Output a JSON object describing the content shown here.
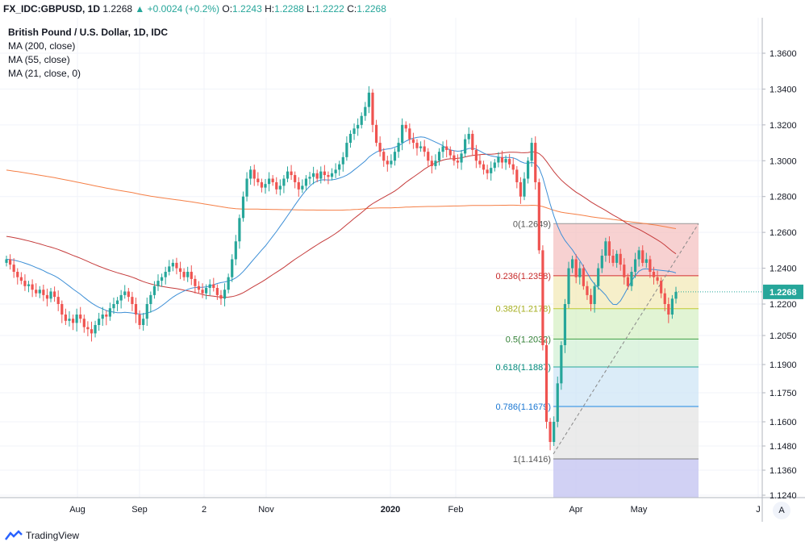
{
  "header": {
    "symbol": "FX_IDC:GBPUSD, 1D",
    "last": "1.2268",
    "change": "▲ +0.0024 (+0.2%)",
    "o_label": "O:",
    "o": "1.2243",
    "h_label": "H:",
    "h": "1.2288",
    "l_label": "L:",
    "l": "1.2222",
    "c_label": "C:",
    "c": "1.2268"
  },
  "legend": {
    "title": "British Pound / U.S. Dollar, 1D, IDC",
    "ma200": "MA (200, close)",
    "ma55": "MA (55, close)",
    "ma21": "MA (21, close, 0)"
  },
  "footer": {
    "brand": "TradingView"
  },
  "controls": {
    "auto": "A"
  },
  "colors": {
    "up": "#26a69a",
    "down": "#ef5350",
    "ma200": "#f57f46",
    "ma55": "#c53b3b",
    "ma21": "#3d8fd6",
    "last_price_bg": "#26a69a"
  },
  "chart_data": {
    "type": "candlestick",
    "y_scale": [
      1.222,
      1.23,
      1.24,
      1.26,
      1.28,
      1.3,
      1.32,
      1.34,
      1.36
    ],
    "y_ticks": [
      "1.3600",
      "1.3400",
      "1.3200",
      "1.3000",
      "1.2800",
      "1.2600",
      "1.2400",
      "1.2200",
      "1.2050",
      "1.1900",
      "1.1750",
      "1.1600",
      "1.1480",
      "1.1360",
      "1.1240"
    ],
    "x_ticks": [
      "Aug",
      "Sep",
      "2",
      "Nov",
      "2020",
      "Feb",
      "Apr",
      "May",
      "J"
    ],
    "last_price_label": "1.2268",
    "candles_close": [
      1.245,
      1.242,
      1.238,
      1.235,
      1.233,
      1.23,
      1.231,
      1.228,
      1.226,
      1.228,
      1.225,
      1.223,
      1.227,
      1.224,
      1.22,
      1.215,
      1.212,
      1.213,
      1.211,
      1.215,
      1.213,
      1.209,
      1.208,
      1.206,
      1.21,
      1.213,
      1.215,
      1.214,
      1.218,
      1.22,
      1.222,
      1.225,
      1.227,
      1.224,
      1.22,
      1.215,
      1.21,
      1.213,
      1.22,
      1.225,
      1.23,
      1.233,
      1.235,
      1.238,
      1.241,
      1.243,
      1.24,
      1.238,
      1.235,
      1.238,
      1.234,
      1.23,
      1.228,
      1.226,
      1.229,
      1.231,
      1.229,
      1.225,
      1.223,
      1.228,
      1.235,
      1.245,
      1.255,
      1.268,
      1.28,
      1.29,
      1.295,
      1.29,
      1.288,
      1.285,
      1.287,
      1.29,
      1.288,
      1.284,
      1.286,
      1.29,
      1.294,
      1.292,
      1.288,
      1.284,
      1.286,
      1.29,
      1.291,
      1.293,
      1.29,
      1.294,
      1.292,
      1.291,
      1.293,
      1.295,
      1.298,
      1.302,
      1.31,
      1.315,
      1.318,
      1.32,
      1.325,
      1.33,
      1.338,
      1.32,
      1.31,
      1.305,
      1.3,
      1.298,
      1.3,
      1.305,
      1.31,
      1.32,
      1.318,
      1.312,
      1.31,
      1.307,
      1.308,
      1.305,
      1.3,
      1.297,
      1.3,
      1.305,
      1.308,
      1.306,
      1.303,
      1.3,
      1.299,
      1.304,
      1.312,
      1.315,
      1.306,
      1.3,
      1.298,
      1.295,
      1.293,
      1.296,
      1.299,
      1.302,
      1.299,
      1.301,
      1.298,
      1.295,
      1.288,
      1.28,
      1.29,
      1.3,
      1.31,
      1.288,
      1.25,
      1.2,
      1.16,
      1.15,
      1.16,
      1.18,
      1.2,
      1.22,
      1.24,
      1.245,
      1.235,
      1.24,
      1.23,
      1.225,
      1.22,
      1.23,
      1.24,
      1.247,
      1.255,
      1.247,
      1.243,
      1.248,
      1.242,
      1.235,
      1.23,
      1.238,
      1.245,
      1.25,
      1.243,
      1.245,
      1.238,
      1.235,
      1.233,
      1.226,
      1.22,
      1.215,
      1.223,
      1.2268
    ],
    "fibonacci": [
      {
        "label": "0(1.2649)",
        "value": 1.2649
      },
      {
        "label": "0.236(1.2358)",
        "value": 1.2358
      },
      {
        "label": "0.382(1.2178)",
        "value": 1.2178
      },
      {
        "label": "0.5(1.2032)",
        "value": 1.2032
      },
      {
        "label": "0.618(1.1887)",
        "value": 1.1887
      },
      {
        "label": "0.786(1.1679)",
        "value": 1.1679
      },
      {
        "label": "1(1.1416)",
        "value": 1.1416
      }
    ]
  }
}
